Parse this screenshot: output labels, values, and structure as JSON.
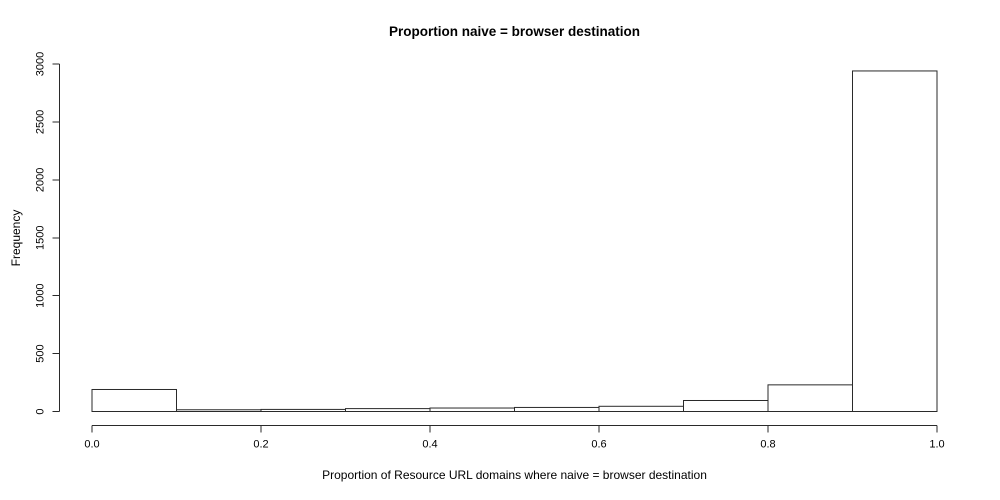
{
  "chart_data": {
    "type": "bar",
    "subtype": "histogram",
    "title": "Proportion naive = browser destination",
    "xlabel": "Proportion of Resource URL domains where naive = browser destination",
    "ylabel": "Frequency",
    "xlim": [
      0.0,
      1.0
    ],
    "ylim": [
      0,
      3000
    ],
    "bin_width": 0.1,
    "bin_edges": [
      0.0,
      0.1,
      0.2,
      0.3,
      0.4,
      0.5,
      0.6,
      0.7,
      0.8,
      0.9,
      1.0
    ],
    "frequencies": [
      190,
      15,
      18,
      25,
      30,
      35,
      45,
      95,
      230,
      2940
    ],
    "x_ticks": [
      0.0,
      0.2,
      0.4,
      0.6,
      0.8,
      1.0
    ],
    "x_tick_labels": [
      "0.0",
      "0.2",
      "0.4",
      "0.6",
      "0.8",
      "1.0"
    ],
    "y_ticks": [
      0,
      500,
      1000,
      1500,
      2000,
      2500,
      3000
    ],
    "y_tick_labels": [
      "0",
      "500",
      "1000",
      "1500",
      "2000",
      "2500",
      "3000"
    ],
    "grid": false,
    "legend": null,
    "bar_fill": "#ffffff",
    "bar_border": "#2a2a2a",
    "axis_color": "#2a2a2a",
    "text_color": "#000000",
    "background": "#ffffff"
  }
}
